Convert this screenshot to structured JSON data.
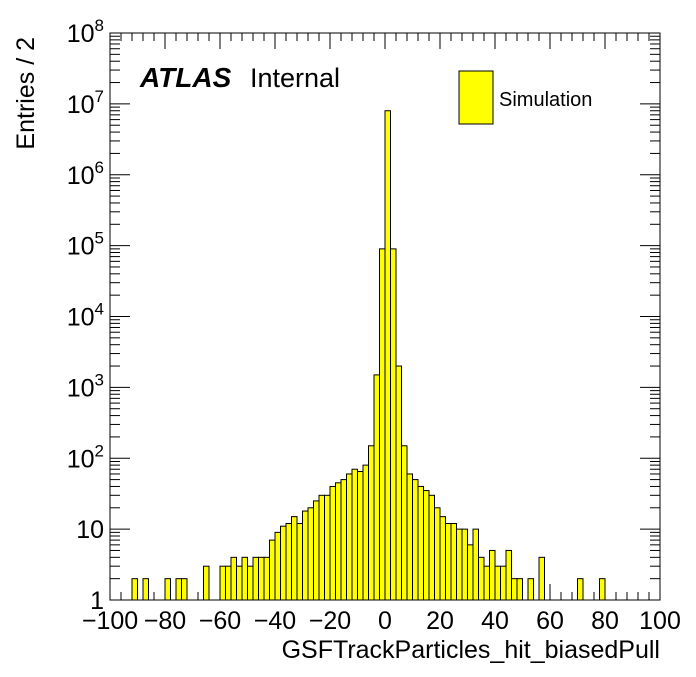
{
  "chart_data": {
    "type": "bar",
    "style": "histogram",
    "scale": {
      "x": "linear",
      "y": "log"
    },
    "xlabel": "GSFTrackParticles_hit_biasedPull",
    "ylabel": "Entries / 2",
    "xlim": [
      -100,
      100
    ],
    "ylim": [
      1,
      100000000
    ],
    "bin_width": 2,
    "x_ticks": [
      {
        "value": -100,
        "label": "−100"
      },
      {
        "value": -80,
        "label": "−80"
      },
      {
        "value": -60,
        "label": "−60"
      },
      {
        "value": -40,
        "label": "−40"
      },
      {
        "value": -20,
        "label": "−20"
      },
      {
        "value": 0,
        "label": "0"
      },
      {
        "value": 20,
        "label": "20"
      },
      {
        "value": 40,
        "label": "40"
      },
      {
        "value": 60,
        "label": "60"
      },
      {
        "value": 80,
        "label": "80"
      },
      {
        "value": 100,
        "label": "100"
      }
    ],
    "y_ticks": [
      {
        "value": 1,
        "base": "1",
        "exp": ""
      },
      {
        "value": 10,
        "base": "10",
        "exp": ""
      },
      {
        "value": 100,
        "base": "10",
        "exp": "2"
      },
      {
        "value": 1000,
        "base": "10",
        "exp": "3"
      },
      {
        "value": 10000,
        "base": "10",
        "exp": "4"
      },
      {
        "value": 100000,
        "base": "10",
        "exp": "5"
      },
      {
        "value": 1000000,
        "base": "10",
        "exp": "6"
      },
      {
        "value": 10000000,
        "base": "10",
        "exp": "7"
      },
      {
        "value": 100000000,
        "base": "10",
        "exp": "8"
      }
    ],
    "atlas_label": "ATLAS",
    "atlas_status": "Internal",
    "legend_position": "top-right",
    "series": [
      {
        "name": "Simulation",
        "color": "#ffff00",
        "edge_color": "#000000",
        "bin_edges_start": -100,
        "values": [
          1,
          1,
          1,
          0,
          2,
          1,
          2,
          0,
          1,
          1,
          2,
          1,
          2,
          2,
          1,
          1,
          1,
          3,
          1,
          1,
          3,
          3,
          4,
          3,
          4,
          3,
          4,
          4,
          4,
          7,
          9,
          11,
          12,
          15,
          12,
          18,
          20,
          25,
          30,
          30,
          40,
          45,
          50,
          60,
          70,
          65,
          80,
          150,
          1500,
          90000,
          8000000,
          90000,
          2000,
          150,
          60,
          50,
          40,
          35,
          30,
          20,
          15,
          12,
          12,
          10,
          10,
          6,
          10,
          4,
          3,
          5,
          3,
          3,
          5,
          2,
          2,
          1,
          2,
          1,
          4,
          0,
          1,
          1,
          1,
          0,
          0,
          2,
          1,
          1,
          1,
          2,
          1,
          0,
          0,
          0,
          0,
          0,
          0,
          1,
          1,
          1
        ]
      }
    ]
  }
}
